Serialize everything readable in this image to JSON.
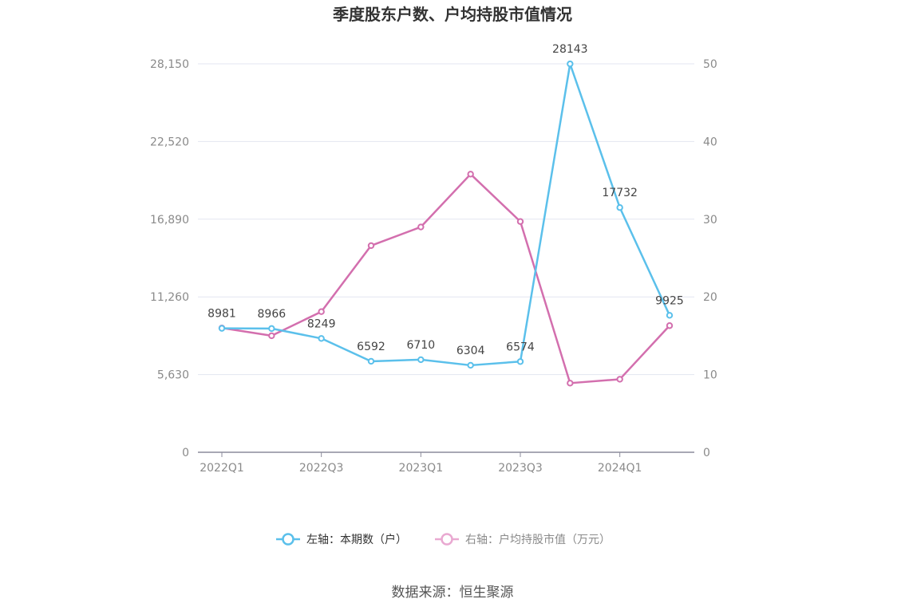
{
  "chart_data": {
    "type": "line",
    "title": "季度股东户数、户均持股市值情况",
    "categories": [
      "2022Q1",
      "2022Q2",
      "2022Q3",
      "2022Q4",
      "2023Q1",
      "2023Q2",
      "2023Q3",
      "2023Q4",
      "2024Q1",
      "2024Q2"
    ],
    "x_tick_labels": [
      "2022Q1",
      "2022Q3",
      "2023Q1",
      "2023Q3",
      "2024Q1"
    ],
    "y_left": {
      "ticks": [
        "0",
        "5,630",
        "11,260",
        "16,890",
        "22,520",
        "28,150"
      ],
      "range": [
        0,
        28150
      ]
    },
    "y_right": {
      "ticks": [
        "0",
        "10",
        "20",
        "30",
        "40",
        "50"
      ],
      "range": [
        0,
        50
      ]
    },
    "series": [
      {
        "name": "左轴：本期数（户）",
        "axis": "left",
        "color": "#5bc0eb",
        "values": [
          8981,
          8966,
          8249,
          6592,
          6710,
          6304,
          6574,
          28143,
          17732,
          9925
        ],
        "labels": [
          "8981",
          "8966",
          "8249",
          "6592",
          "6710",
          "6304",
          "6574",
          "28143",
          "17732",
          "9925"
        ]
      },
      {
        "name": "右轴：户均持股市值（万元）",
        "axis": "right",
        "color": "#d36fae",
        "values": [
          16.0,
          15.0,
          18.1,
          26.6,
          29.0,
          35.8,
          29.7,
          8.9,
          9.4,
          16.3
        ]
      }
    ],
    "grid": true,
    "legend_position": "bottom-center"
  },
  "source": "数据来源：恒生聚源"
}
